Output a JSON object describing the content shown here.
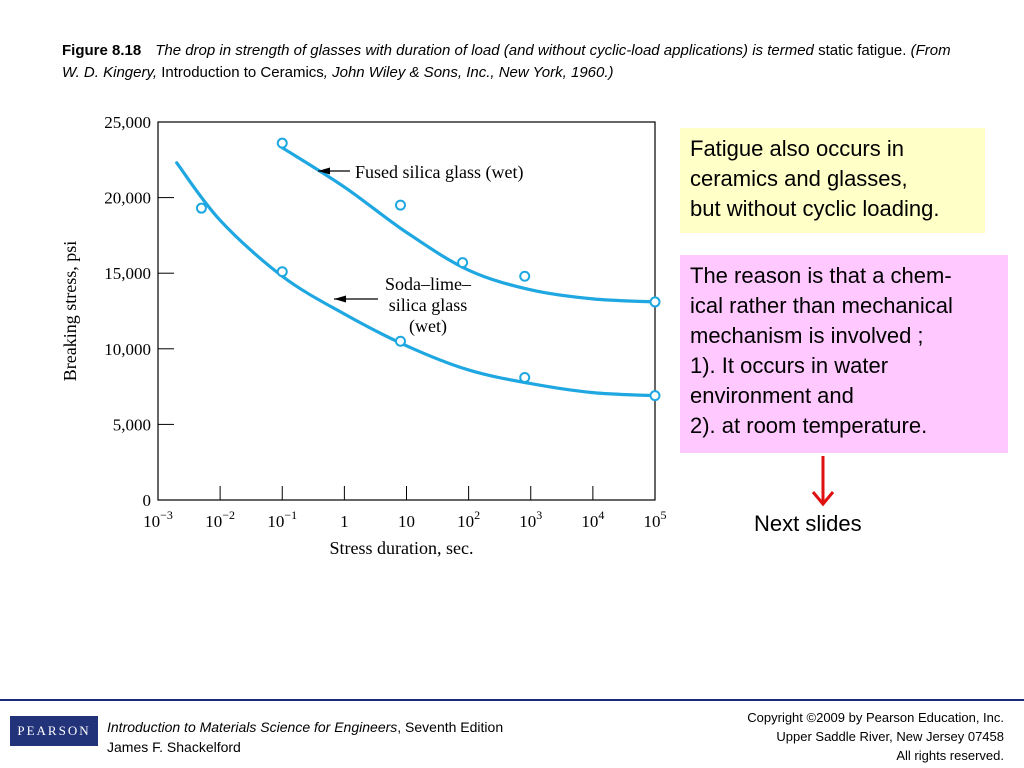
{
  "caption": {
    "figure_label": "Figure 8.18",
    "italic_text": "The drop in strength of glasses with duration of load (and without cyclic-load applications) is termed",
    "term": "static fatigue.",
    "source_prefix": "(From W. D. Kingery,",
    "source_title": "Introduction to Ceramics",
    "source_suffix": ", John Wiley & Sons, Inc., New York, 1960.)"
  },
  "chart_data": {
    "type": "scatter",
    "ylabel": "Breaking stress, psi",
    "xlabel": "Stress duration, sec.",
    "x_scale": "log",
    "xlim": [
      0.001,
      100000
    ],
    "ylim": [
      0,
      25000
    ],
    "x_ticks": [
      0.001,
      0.01,
      0.1,
      1,
      10,
      100,
      1000,
      10000,
      100000
    ],
    "x_tick_labels": [
      {
        "base": "10",
        "exp": "−3"
      },
      {
        "base": "10",
        "exp": "−2"
      },
      {
        "base": "10",
        "exp": "−1"
      },
      {
        "base": "1",
        "exp": ""
      },
      {
        "base": "10",
        "exp": ""
      },
      {
        "base": "10",
        "exp": "2"
      },
      {
        "base": "10",
        "exp": "3"
      },
      {
        "base": "10",
        "exp": "4"
      },
      {
        "base": "10",
        "exp": "5"
      }
    ],
    "y_ticks": [
      0,
      5000,
      10000,
      15000,
      20000,
      25000
    ],
    "y_tick_labels": [
      "0",
      "5,000",
      "10,000",
      "15,000",
      "20,000",
      "25,000"
    ],
    "grid": false,
    "series": [
      {
        "name": "Fused silica glass (wet)",
        "label_lines": [
          "Fused silica glass (wet)"
        ],
        "color": "#1ea7e1",
        "points": [
          [
            0.1,
            23600
          ],
          [
            8,
            19500
          ],
          [
            80,
            15700
          ],
          [
            800,
            14800
          ],
          [
            100000,
            13100
          ]
        ],
        "curve": [
          [
            0.1,
            23300
          ],
          [
            1,
            20700
          ],
          [
            10,
            17700
          ],
          [
            100,
            15200
          ],
          [
            1000,
            13900
          ],
          [
            10000,
            13300
          ],
          [
            100000,
            13100
          ]
        ]
      },
      {
        "name": "Soda–lime–silica glass (wet)",
        "label_lines": [
          "Soda–lime–",
          "silica glass",
          "(wet)"
        ],
        "color": "#1ea7e1",
        "points": [
          [
            0.005,
            19300
          ],
          [
            0.1,
            15100
          ],
          [
            8,
            10500
          ],
          [
            800,
            8100
          ],
          [
            100000,
            6900
          ]
        ],
        "curve": [
          [
            0.002,
            22300
          ],
          [
            0.01,
            18500
          ],
          [
            0.1,
            14800
          ],
          [
            1,
            12300
          ],
          [
            10,
            10200
          ],
          [
            100,
            8600
          ],
          [
            1000,
            7700
          ],
          [
            10000,
            7100
          ],
          [
            100000,
            6900
          ]
        ]
      }
    ]
  },
  "notes": {
    "note1_lines": [
      "Fatigue also occurs in",
      "ceramics and glasses,",
      "but without cyclic loading."
    ],
    "note2_lines": [
      "The reason is that a chem-",
      "ical rather than mechanical",
      "mechanism is involved ;",
      "1). It occurs in water",
      "environment and",
      "2). at room temperature."
    ],
    "next_label": "Next slides",
    "arrow_color": "#e01010"
  },
  "footer": {
    "logo": "PEARSON",
    "book_title": "Introduction to Materials Science for Engineers",
    "edition": ", Seventh Edition",
    "author": "James F. Shackelford",
    "copyright_lines": [
      "Copyright ©2009 by Pearson Education, Inc.",
      "Upper Saddle River, New Jersey 07458",
      "All rights reserved."
    ]
  }
}
